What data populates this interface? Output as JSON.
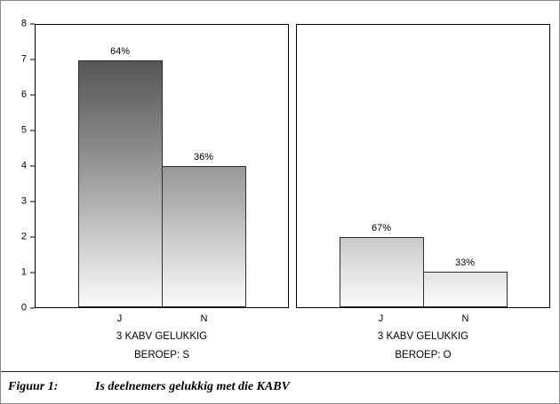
{
  "chart_data": {
    "type": "bar",
    "ylim": [
      0,
      8
    ],
    "yticks": [
      0,
      1,
      2,
      3,
      4,
      5,
      6,
      7,
      8
    ],
    "grid": false,
    "legend": "none",
    "panels": [
      {
        "title": "BEROEP: S",
        "xlabel": "3 KABV GELUKKIG",
        "categories": [
          "J",
          "N"
        ],
        "values": [
          7,
          4
        ],
        "labels": [
          "64%",
          "36%"
        ]
      },
      {
        "title": "BEROEP: O",
        "xlabel": "3 KABV GELUKKIG",
        "categories": [
          "J",
          "N"
        ],
        "values": [
          2,
          1
        ],
        "labels": [
          "67%",
          "33%"
        ]
      }
    ],
    "bar_gradient_top": "#3f3f3f",
    "bar_gradient_bottom": "#fbfbfb"
  },
  "caption": {
    "label": "Figuur 1:",
    "text": "Is deelnemers gelukkig met die KABV"
  }
}
